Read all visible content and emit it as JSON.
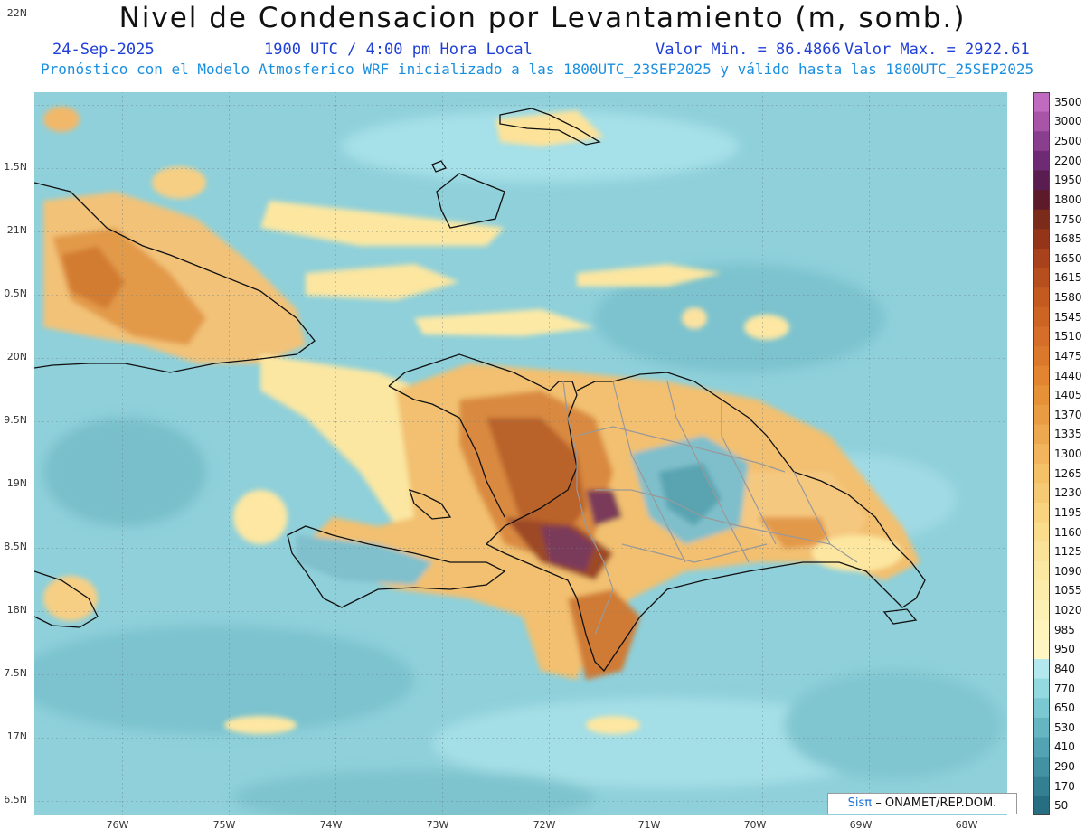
{
  "header": {
    "title": "Nivel de Condensacion por Levantamiento (m, somb.)",
    "date": "24-Sep-2025",
    "time": "1900 UTC / 4:00 pm Hora Local",
    "min_label": "Valor Min. = 86.4866",
    "max_label": "Valor Max. = 2922.61",
    "model_info": "Pronóstico con el Modelo Atmosferico WRF inicializado a las 1800UTC_23SEP2025 y válido hasta las  1800UTC_25SEP2025"
  },
  "axes": {
    "lat_labels": [
      "22N",
      "1.5N",
      "21N",
      "0.5N",
      "20N",
      "9.5N",
      "19N",
      "8.5N",
      "18N",
      "7.5N",
      "17N",
      "6.5N"
    ],
    "lon_labels": [
      "76W",
      "75W",
      "74W",
      "73W",
      "72W",
      "71W",
      "70W",
      "69W",
      "68W"
    ]
  },
  "colorbar": {
    "labels": [
      "3500",
      "3000",
      "2500",
      "2200",
      "1950",
      "1800",
      "1750",
      "1685",
      "1650",
      "1615",
      "1580",
      "1545",
      "1510",
      "1475",
      "1440",
      "1405",
      "1370",
      "1335",
      "1300",
      "1265",
      "1230",
      "1195",
      "1160",
      "1125",
      "1090",
      "1055",
      "1020",
      "985",
      "950",
      "840",
      "770",
      "650",
      "530",
      "410",
      "290",
      "170",
      "50"
    ],
    "colors": [
      "#c06ac0",
      "#a855a8",
      "#8a3e8e",
      "#6e2a72",
      "#5a1d52",
      "#5c1a2a",
      "#7c2a1a",
      "#94351a",
      "#a8421c",
      "#b64e1e",
      "#c45a20",
      "#cc6424",
      "#d46e28",
      "#dc782c",
      "#e28430",
      "#e69038",
      "#ea9c44",
      "#eea850",
      "#f2b45c",
      "#f4c068",
      "#f6ca74",
      "#f8d480",
      "#f9dc8c",
      "#fae298",
      "#fbe8a2",
      "#fcecac",
      "#fdf0b4",
      "#fef4bc",
      "#fff6c4",
      "#b2e8ee",
      "#94d8e0",
      "#7cc8d2",
      "#66b6c2",
      "#52a4b2",
      "#4292a2",
      "#347f92",
      "#286e82"
    ]
  },
  "credit": {
    "brand": "Sisπ",
    "text": "– ONAMET/REP.DOM."
  }
}
